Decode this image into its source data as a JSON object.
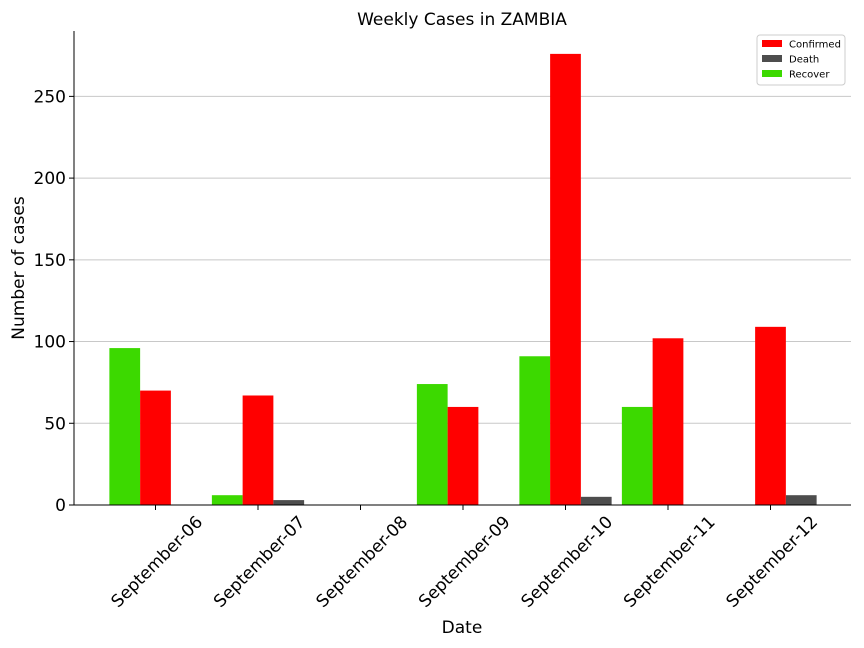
{
  "chart_data": {
    "type": "bar",
    "title": "Weekly Cases in ZAMBIA",
    "xlabel": "Date",
    "ylabel": "Number of cases",
    "ylim": [
      0,
      290
    ],
    "yticks": [
      0,
      50,
      100,
      150,
      200,
      250
    ],
    "grid": "horizontal",
    "legend_position": "top-right",
    "categories": [
      "September-06",
      "September-07",
      "September-08",
      "September-09",
      "September-10",
      "September-11",
      "September-12"
    ],
    "series": [
      {
        "name": "Recover",
        "color": "#3cd900",
        "values": [
          96,
          6,
          0,
          74,
          91,
          60,
          0
        ]
      },
      {
        "name": "Confirmed",
        "color": "#ff0000",
        "values": [
          70,
          67,
          0,
          60,
          276,
          102,
          109
        ]
      },
      {
        "name": "Death",
        "color": "#4d4d4d",
        "values": [
          0,
          3,
          0,
          0,
          5,
          0,
          6
        ]
      }
    ],
    "legend_order": [
      "Confirmed",
      "Death",
      "Recover"
    ]
  }
}
